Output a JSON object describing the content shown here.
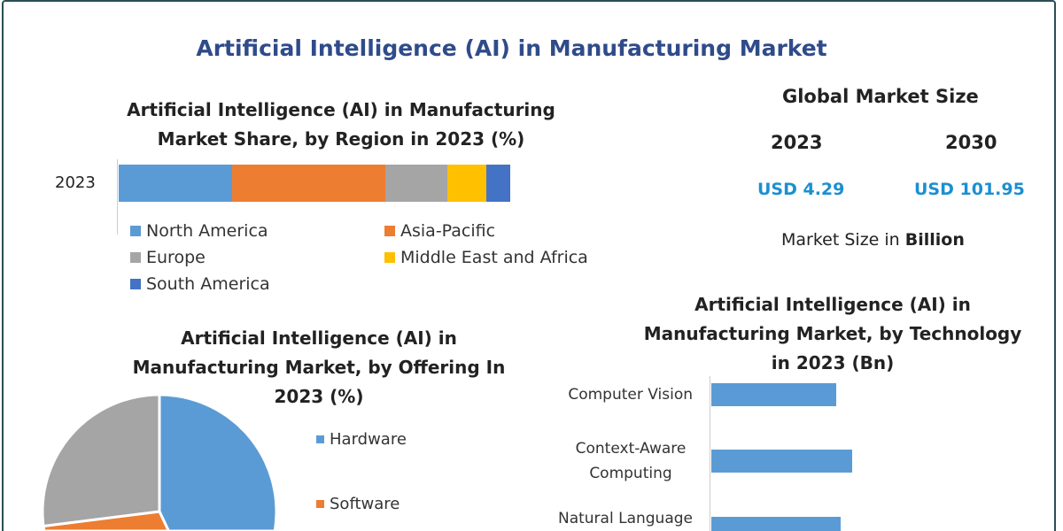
{
  "title": "Artificial Intelligence (AI) in Manufacturing Market",
  "market_size": {
    "heading": "Global Market Size",
    "years": [
      "2023",
      "2030"
    ],
    "values": [
      "USD 4.29",
      "USD 101.95"
    ],
    "note_prefix": "Market Size in ",
    "note_unit": "Billion"
  },
  "chart_data": [
    {
      "type": "bar",
      "stacked": true,
      "orientation": "horizontal",
      "title_lines": [
        "Artificial Intelligence (AI) in Manufacturing",
        "Market Share, by Region in 2023 (%)"
      ],
      "categories": [
        "2023"
      ],
      "series": [
        {
          "name": "North America",
          "values": [
            29
          ],
          "color": "#5b9bd5"
        },
        {
          "name": "Asia-Pacific",
          "values": [
            39
          ],
          "color": "#ed7d31"
        },
        {
          "name": "Europe",
          "values": [
            16
          ],
          "color": "#a5a5a5"
        },
        {
          "name": "Middle East and Africa",
          "values": [
            10
          ],
          "color": "#ffc000"
        },
        {
          "name": "South America",
          "values": [
            6
          ],
          "color": "#4472c4"
        }
      ]
    },
    {
      "type": "pie",
      "title_lines": [
        "Artificial Intelligence (AI) in",
        "Manufacturing Market, by Offering In",
        "2023 (%)"
      ],
      "slices": [
        {
          "name": "Hardware",
          "value": 43,
          "color": "#5b9bd5"
        },
        {
          "name": "Software",
          "value": 30,
          "color": "#ed7d31"
        },
        {
          "value": 27,
          "color": "#a5a5a5"
        }
      ]
    },
    {
      "type": "bar",
      "orientation": "horizontal",
      "title_lines": [
        "Artificial Intelligence (AI) in",
        "Manufacturing Market, by Technology",
        "in 2023 (Bn)"
      ],
      "categories": [
        [
          "Computer Vision"
        ],
        [
          "Context-Aware",
          "Computing"
        ],
        [
          "Natural Language"
        ]
      ],
      "values": [
        1.88,
        2.13,
        1.95
      ],
      "xlim": [
        0,
        2.5
      ],
      "color": "#5b9bd5"
    }
  ]
}
